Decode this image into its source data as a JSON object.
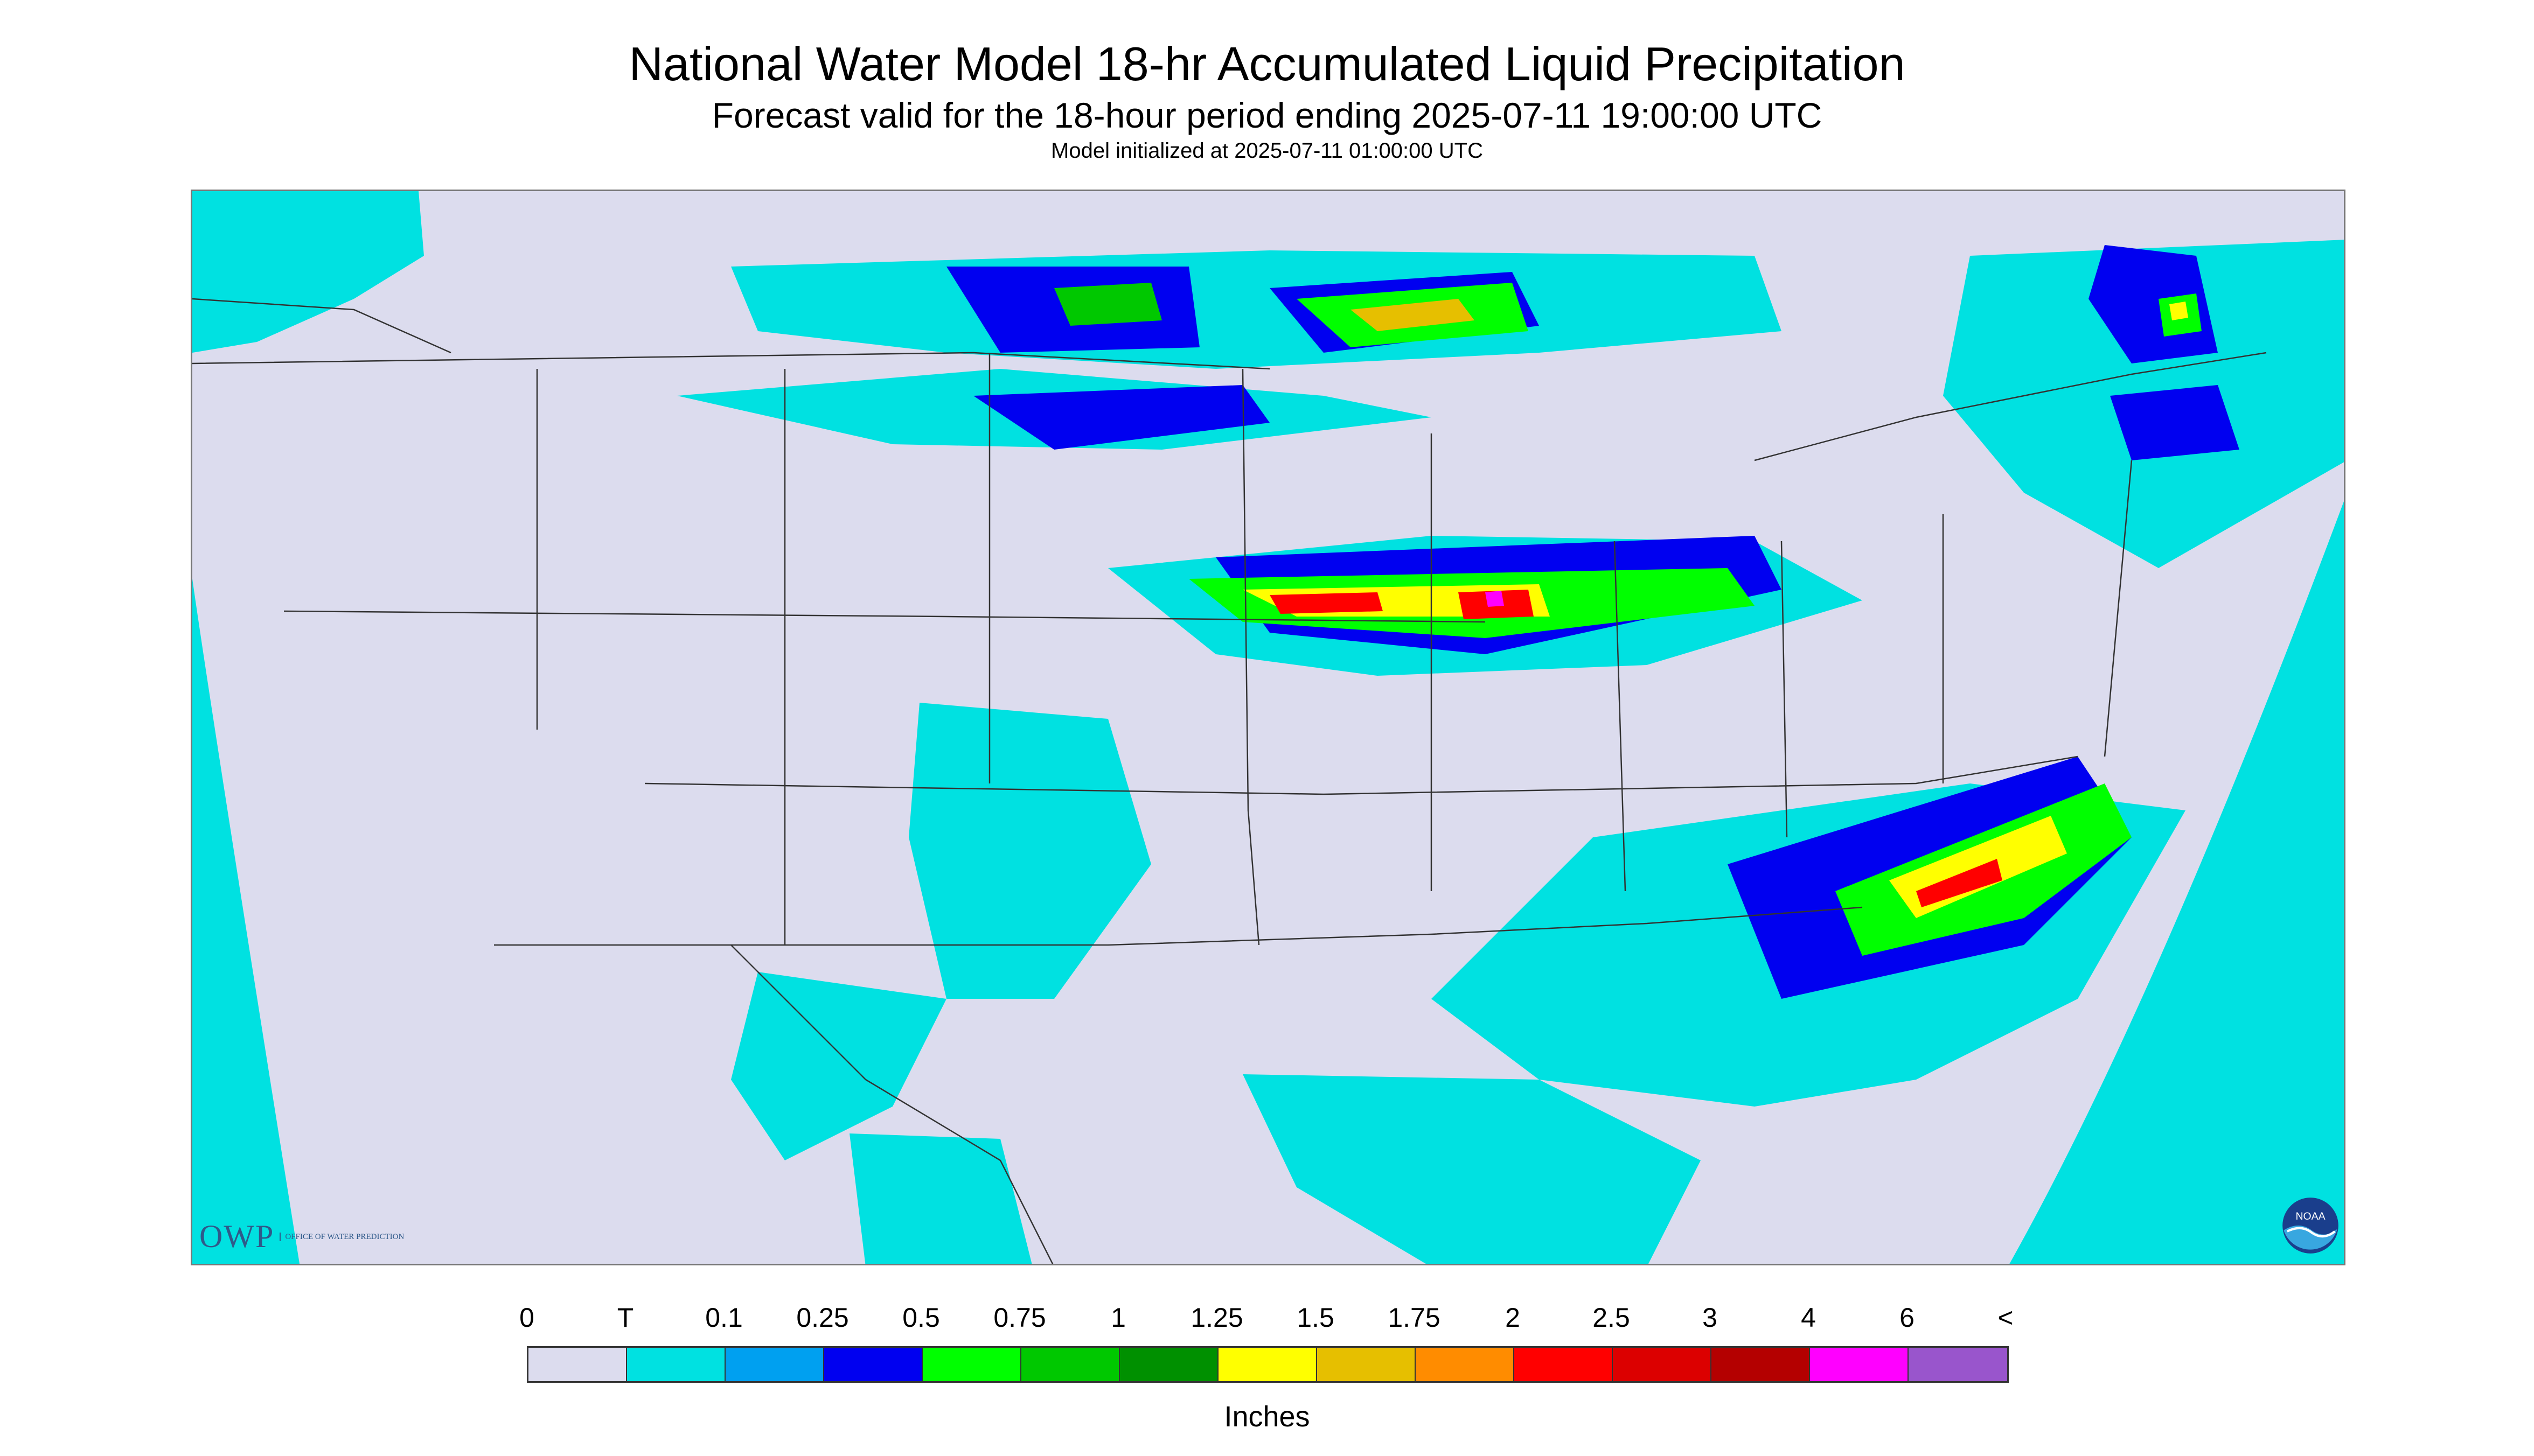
{
  "title": "National Water Model 18-hr Accumulated Liquid Precipitation",
  "subtitle": "Forecast valid for the 18-hour period ending 2025-07-11 19:00:00 UTC",
  "model_init": "Model initialized at 2025-07-11 01:00:00 UTC",
  "logos": {
    "owp_mark": "OWP",
    "owp_text": "Office of Water Prediction",
    "noaa_text": "NOAA"
  },
  "legend": {
    "labels": [
      "0",
      "T",
      "0.1",
      "0.25",
      "0.5",
      "0.75",
      "1",
      "1.25",
      "1.5",
      "1.75",
      "2",
      "2.5",
      "3",
      "4",
      "6",
      "<"
    ],
    "colors": [
      "#dcdcee",
      "#00e1e1",
      "#00a0f0",
      "#0000f0",
      "#00ff00",
      "#00c800",
      "#009000",
      "#ffff00",
      "#e6bf00",
      "#ff8c00",
      "#ff0000",
      "#dc0000",
      "#b40000",
      "#ff00ff",
      "#9955cc"
    ],
    "units": "Inches"
  },
  "map_colors": {
    "ocean_out": "#00e1e1",
    "land_dry": "#dcdcee",
    "boundary": "#333333"
  }
}
